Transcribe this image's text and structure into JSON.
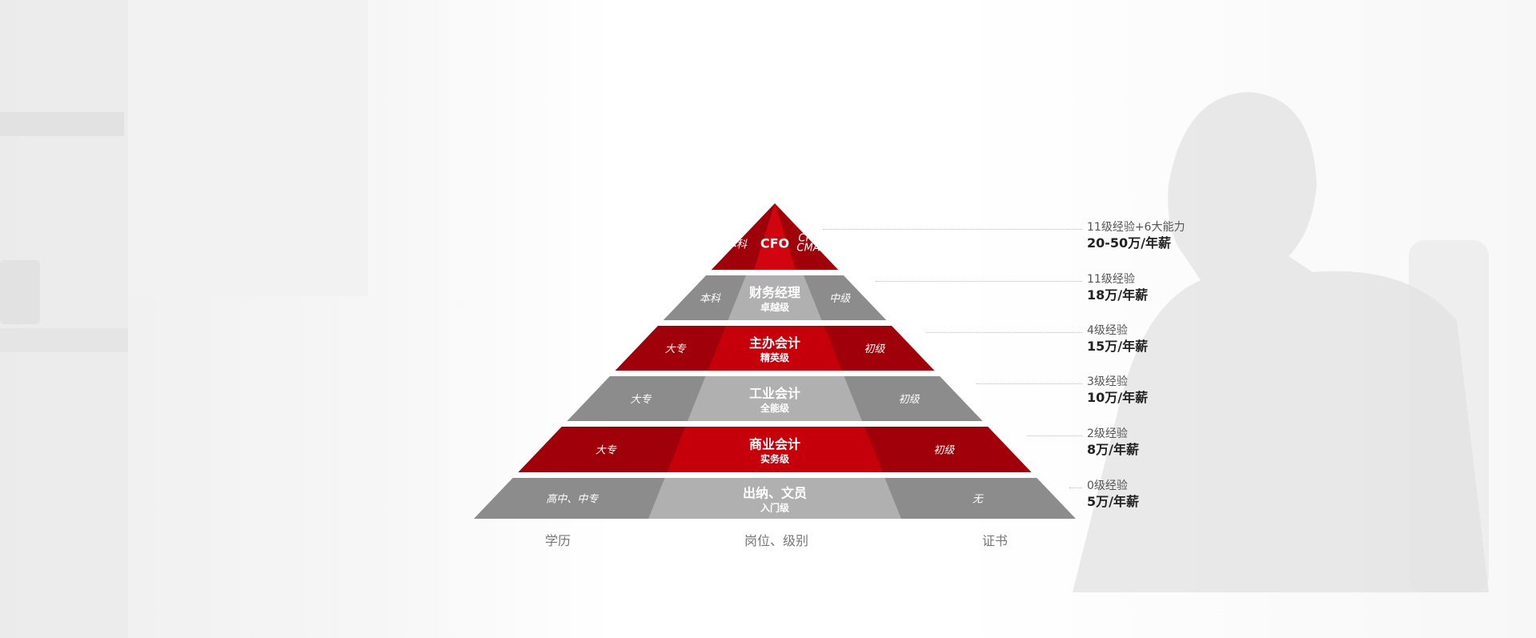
{
  "axis_labels": {
    "education": "学历",
    "position": "岗位、级别",
    "certificate": "证书"
  },
  "colors": {
    "red": "#c5000b",
    "dark_red": "#a00009",
    "gray": "#b0b0b0",
    "dark_gray": "#8c8c8c"
  },
  "levels": [
    {
      "title": "CFO",
      "subtitle": "",
      "education": "本科",
      "certificate_lines": [
        "CPA",
        "CMA"
      ],
      "experience": "11级经验+6大能力",
      "salary": "20-50万/年薪",
      "theme": "red"
    },
    {
      "title": "财务经理",
      "subtitle": "卓越级",
      "education": "本科",
      "certificate_lines": [
        "中级"
      ],
      "experience": "11级经验",
      "salary": "18万/年薪",
      "theme": "gray"
    },
    {
      "title": "主办会计",
      "subtitle": "精英级",
      "education": "大专",
      "certificate_lines": [
        "初级"
      ],
      "experience": "4级经验",
      "salary": "15万/年薪",
      "theme": "red"
    },
    {
      "title": "工业会计",
      "subtitle": "全能级",
      "education": "大专",
      "certificate_lines": [
        "初级"
      ],
      "experience": "3级经验",
      "salary": "10万/年薪",
      "theme": "gray"
    },
    {
      "title": "商业会计",
      "subtitle": "实务级",
      "education": "大专",
      "certificate_lines": [
        "初级"
      ],
      "experience": "2级经验",
      "salary": "8万/年薪",
      "theme": "red"
    },
    {
      "title": "出纳、文员",
      "subtitle": "入门级",
      "education": "高中、中专",
      "certificate_lines": [
        "无"
      ],
      "experience": "0级经验",
      "salary": "5万/年薪",
      "theme": "gray"
    }
  ]
}
